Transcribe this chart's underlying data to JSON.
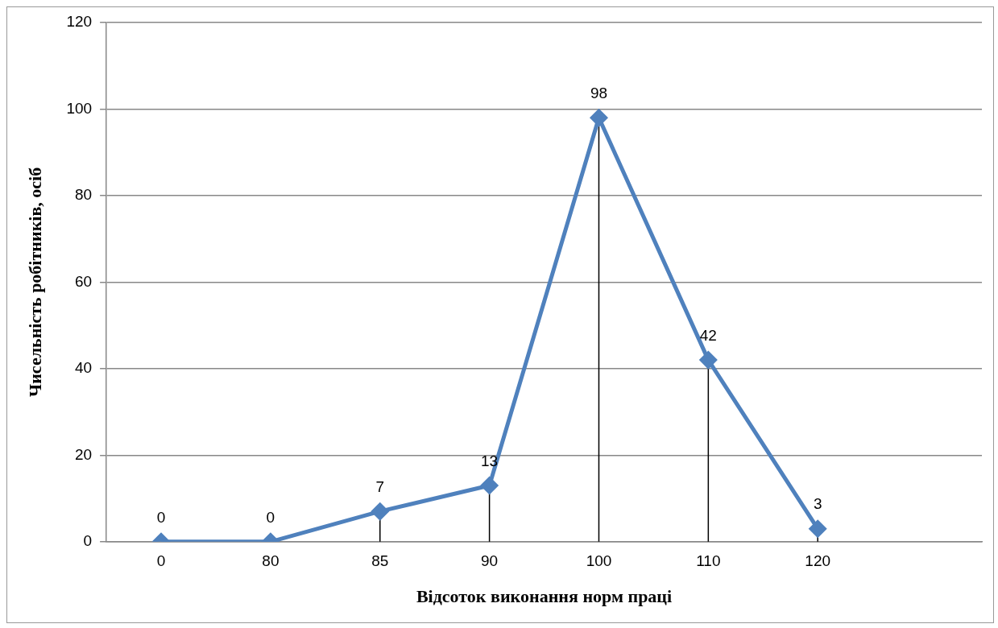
{
  "chart_data": {
    "type": "line",
    "xlabel": "Відсоток виконання норм праці",
    "ylabel": "Чисельність робітників, осіб",
    "categories": [
      "0",
      "80",
      "85",
      "90",
      "100",
      "110",
      "120",
      null
    ],
    "series": [
      {
        "color": "#4f81bd",
        "values": [
          0,
          0,
          7,
          13,
          98,
          42,
          3,
          null
        ],
        "errors": [
          [
            0,
            0
          ],
          [
            0,
            0
          ],
          [
            0,
            7
          ],
          [
            0,
            13
          ],
          [
            0,
            98
          ],
          [
            0,
            42
          ],
          [
            0,
            3
          ],
          null
        ]
      }
    ],
    "ylim": [
      0,
      120
    ],
    "yticks": [
      0,
      20,
      40,
      60,
      80,
      100,
      120
    ],
    "grid": "y",
    "marker": "diamond",
    "data_labels": true,
    "legend": false
  }
}
